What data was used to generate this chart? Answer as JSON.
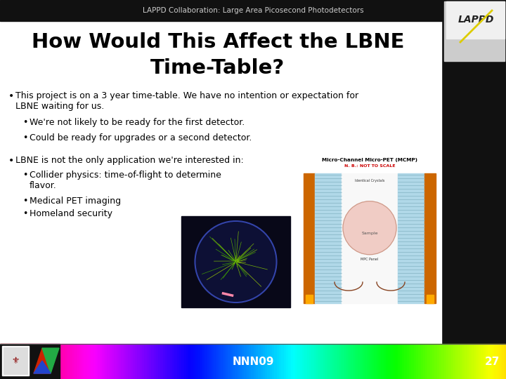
{
  "header_text": "LAPPD Collaboration: Large Area Picosecond Photodetectors",
  "title_line1": "How Would This Affect the LBNE",
  "title_line2": "Time-Table?",
  "footer_text": "NNN09",
  "footer_page": "27",
  "bg_color": "#ffffff",
  "title_color": "#000000",
  "text_color": "#000000",
  "header_color": "#cccccc",
  "footer_text_color": "#ffffff",
  "black_bar_color": "#111111",
  "header_bar_color": "#111111"
}
